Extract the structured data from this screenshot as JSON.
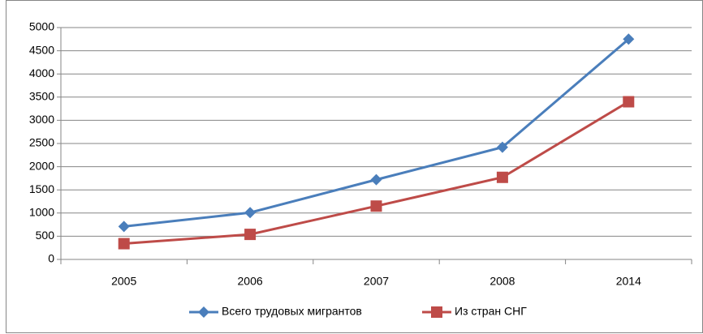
{
  "chart_data": {
    "type": "line",
    "categories": [
      "2005",
      "2006",
      "2007",
      "2008",
      "2014"
    ],
    "series": [
      {
        "name": "Всего трудовых мигрантов",
        "color": "#4a7ebb",
        "marker": "diamond",
        "values": [
          710,
          1010,
          1720,
          2420,
          4750
        ]
      },
      {
        "name": "Из стран СНГ",
        "color": "#be4b48",
        "marker": "square",
        "values": [
          340,
          540,
          1150,
          1770,
          3400
        ]
      }
    ],
    "ylim": [
      0,
      5000
    ],
    "yticks": [
      0,
      500,
      1000,
      1500,
      2000,
      2500,
      3000,
      3500,
      4000,
      4500,
      5000
    ],
    "grid": true,
    "legend": "bottom"
  }
}
